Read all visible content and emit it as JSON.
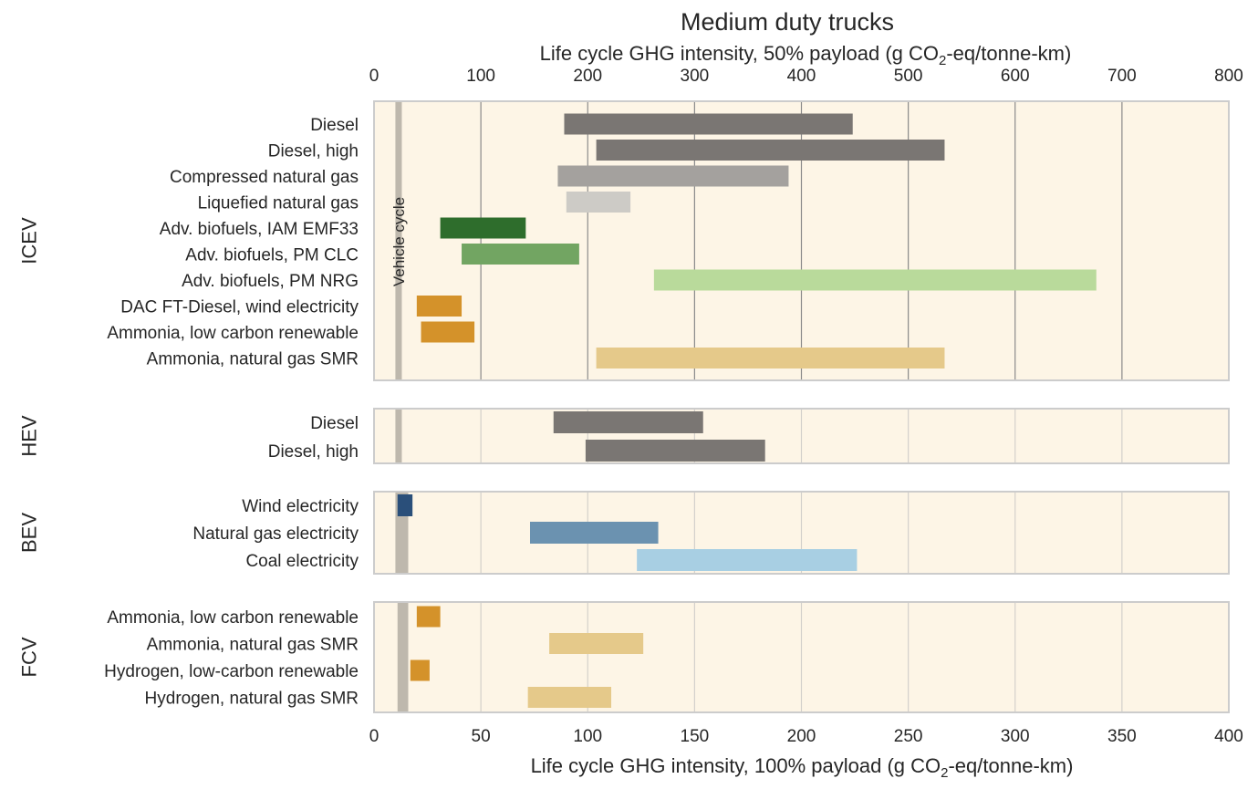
{
  "chart_data": {
    "type": "bar",
    "orientation": "horizontal-range",
    "title": "Medium duty trucks",
    "xlabel_top": {
      "pre": "Life cycle GHG intensity, 50% payload (g CO",
      "sub": "2",
      "post": "-eq/tonne-km)"
    },
    "xlabel_bottom": {
      "pre": "Life cycle GHG intensity, 100% payload (g CO",
      "sub": "2",
      "post": "-eq/tonne-km)"
    },
    "xlim_top": [
      0,
      800
    ],
    "xlim_bottom": [
      0,
      400
    ],
    "top_ticks": [
      "0",
      "100",
      "200",
      "300",
      "400",
      "500",
      "600",
      "700",
      "800"
    ],
    "bottom_ticks": [
      "0",
      "50",
      "100",
      "150",
      "200",
      "250",
      "300",
      "350",
      "400"
    ],
    "grid": true,
    "panel_background": "#fdf5e6",
    "vehicle_cycle_label": "Vehicle cycle",
    "vehicle_cycle_color": "#beb8ad",
    "panels": [
      {
        "group": "ICEV",
        "vehicle_cycle": [
          10,
          13
        ],
        "bars": [
          {
            "label": "Diesel",
            "x0": 89,
            "x1": 224,
            "color": "#7a7673"
          },
          {
            "label": "Diesel, high",
            "x0": 104,
            "x1": 267,
            "color": "#7a7673"
          },
          {
            "label": "Compressed natural gas",
            "x0": 86,
            "x1": 194,
            "color": "#a4a19e"
          },
          {
            "label": "Liquefied natural gas",
            "x0": 90,
            "x1": 120,
            "color": "#cdcbc6"
          },
          {
            "label": "Adv. biofuels, IAM EMF33",
            "x0": 31,
            "x1": 71,
            "color": "#2e6d2c"
          },
          {
            "label": "Adv. biofuels, PM CLC",
            "x0": 41,
            "x1": 96,
            "color": "#72a562"
          },
          {
            "label": "Adv. biofuels, PM NRG",
            "x0": 131,
            "x1": 338,
            "color": "#b9da9b"
          },
          {
            "label": "DAC FT-Diesel, wind electricity",
            "x0": 20,
            "x1": 41,
            "color": "#d4922a"
          },
          {
            "label": "Ammonia, low carbon renewable",
            "x0": 22,
            "x1": 47,
            "color": "#d4922a"
          },
          {
            "label": "Ammonia, natural gas SMR",
            "x0": 104,
            "x1": 267,
            "color": "#e5c98a"
          }
        ]
      },
      {
        "group": "HEV",
        "vehicle_cycle": [
          10,
          13
        ],
        "bars": [
          {
            "label": "Diesel",
            "x0": 84,
            "x1": 154,
            "color": "#7a7673"
          },
          {
            "label": "Diesel, high",
            "x0": 99,
            "x1": 183,
            "color": "#7a7673"
          }
        ]
      },
      {
        "group": "BEV",
        "vehicle_cycle": [
          10,
          16
        ],
        "bars": [
          {
            "label": "Wind electricity",
            "x0": 11,
            "x1": 18,
            "color": "#2a4f7a"
          },
          {
            "label": "Natural gas electricity",
            "x0": 73,
            "x1": 133,
            "color": "#6b92b0"
          },
          {
            "label": "Coal electricity",
            "x0": 123,
            "x1": 226,
            "color": "#a8cfe3"
          }
        ]
      },
      {
        "group": "FCV",
        "vehicle_cycle": [
          11,
          16
        ],
        "bars": [
          {
            "label": "Ammonia, low carbon renewable",
            "x0": 20,
            "x1": 31,
            "color": "#d4922a"
          },
          {
            "label": "Ammonia, natural gas SMR",
            "x0": 82,
            "x1": 126,
            "color": "#e5c98a"
          },
          {
            "label": "Hydrogen, low-carbon renewable",
            "x0": 17,
            "x1": 26,
            "color": "#d4922a"
          },
          {
            "label": "Hydrogen, natural gas SMR",
            "x0": 72,
            "x1": 111,
            "color": "#e5c98a"
          }
        ]
      }
    ]
  }
}
